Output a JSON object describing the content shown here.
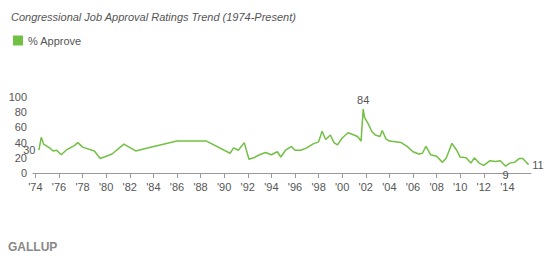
{
  "chart_data": {
    "type": "line",
    "title": "Congressional Job Approval Ratings Trend (1974-Present)",
    "footer": "GALLUP",
    "legend": "top-left",
    "grid": false,
    "series": [
      {
        "name": "% Approve",
        "color": "#72c044",
        "x": [
          1974.3,
          1974.5,
          1974.7,
          1975.0,
          1975.3,
          1975.5,
          1975.8,
          1976.2,
          1976.6,
          1977.3,
          1977.6,
          1978.0,
          1979.0,
          1979.5,
          1980.5,
          1981.5,
          1982.5,
          1983.5,
          1986.0,
          1988.5,
          1990.5,
          1990.8,
          1991.2,
          1991.7,
          1992.1,
          1992.5,
          1993.0,
          1993.5,
          1994.0,
          1994.5,
          1994.8,
          1995.2,
          1995.7,
          1996.0,
          1996.5,
          1997.0,
          1997.5,
          1998.0,
          1998.3,
          1998.6,
          1999.0,
          1999.3,
          1999.6,
          2000.0,
          2000.5,
          2001.0,
          2001.3,
          2001.6,
          2001.78,
          2001.9,
          2002.2,
          2002.5,
          2002.8,
          2003.2,
          2003.4,
          2003.7,
          2004.0,
          2004.5,
          2005.0,
          2005.5,
          2006.0,
          2006.5,
          2006.8,
          2007.1,
          2007.5,
          2008.0,
          2008.5,
          2008.8,
          2009.1,
          2009.3,
          2009.7,
          2010.0,
          2010.5,
          2010.9,
          2011.2,
          2011.6,
          2012.0,
          2012.5,
          2013.0,
          2013.4,
          2013.85,
          2014.2,
          2014.6,
          2015.0,
          2015.3,
          2015.6,
          2015.8
        ],
        "values": [
          30,
          47,
          38,
          35,
          32,
          29,
          30,
          24,
          30,
          36,
          40,
          34,
          29,
          19,
          25,
          38,
          29,
          33,
          42,
          42,
          26,
          33,
          30,
          40,
          18,
          20,
          24,
          27,
          24,
          28,
          21,
          30,
          35,
          30,
          30,
          33,
          38,
          41,
          55,
          44,
          50,
          40,
          37,
          46,
          53,
          50,
          48,
          42,
          84,
          73,
          65,
          55,
          50,
          48,
          56,
          45,
          42,
          41,
          40,
          35,
          28,
          25,
          26,
          35,
          24,
          22,
          14,
          19,
          31,
          39,
          30,
          21,
          20,
          13,
          20,
          13,
          10,
          16,
          15,
          16,
          9,
          13,
          14,
          19,
          19,
          14,
          11
        ]
      }
    ],
    "annotations": [
      {
        "x": 1974.3,
        "y": 30,
        "label": "30"
      },
      {
        "x": 2001.78,
        "y": 84,
        "label": "84"
      },
      {
        "x": 2013.85,
        "y": 9,
        "label": "9"
      },
      {
        "x": 2015.8,
        "y": 11,
        "label": "11"
      }
    ],
    "xlim": [
      1973.8,
      2016
    ],
    "xticks": [
      {
        "value": 1974,
        "label": "'74"
      },
      {
        "value": 1976,
        "label": "'76"
      },
      {
        "value": 1978,
        "label": "'78"
      },
      {
        "value": 1980,
        "label": "'80"
      },
      {
        "value": 1982,
        "label": "'82"
      },
      {
        "value": 1984,
        "label": "'84"
      },
      {
        "value": 1986,
        "label": "'86"
      },
      {
        "value": 1988,
        "label": "'88"
      },
      {
        "value": 1990,
        "label": "'90"
      },
      {
        "value": 1992,
        "label": "'92"
      },
      {
        "value": 1994,
        "label": "'94"
      },
      {
        "value": 1996,
        "label": "'96"
      },
      {
        "value": 1998,
        "label": "'98"
      },
      {
        "value": 2000,
        "label": "'00"
      },
      {
        "value": 2002,
        "label": "'02"
      },
      {
        "value": 2004,
        "label": "'04"
      },
      {
        "value": 2006,
        "label": "'06"
      },
      {
        "value": 2008,
        "label": "'08"
      },
      {
        "value": 2010,
        "label": "'10"
      },
      {
        "value": 2012,
        "label": "'12"
      },
      {
        "value": 2014,
        "label": "'14"
      }
    ],
    "ylim": [
      0,
      100
    ],
    "yticks": [
      0,
      20,
      40,
      60,
      80,
      100
    ]
  }
}
